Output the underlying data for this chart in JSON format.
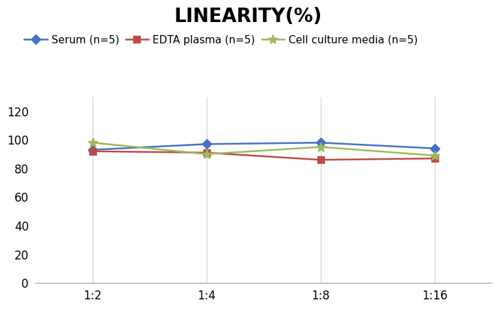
{
  "title": "LINEARITY(%)",
  "title_fontsize": 20,
  "title_fontweight": "bold",
  "x_labels": [
    "1:2",
    "1:4",
    "1:8",
    "1:16"
  ],
  "x_positions": [
    0,
    1,
    2,
    3
  ],
  "series": [
    {
      "label": "Serum (n=5)",
      "values": [
        93,
        97,
        98,
        94
      ],
      "color": "#4472C4",
      "marker": "D",
      "markersize": 7,
      "linewidth": 1.8
    },
    {
      "label": "EDTA plasma (n=5)",
      "values": [
        92,
        91,
        86,
        87
      ],
      "color": "#BE4B48",
      "marker": "s",
      "markersize": 7,
      "linewidth": 1.8
    },
    {
      "label": "Cell culture media (n=5)",
      "values": [
        98,
        90,
        95,
        89
      ],
      "color": "#9BBB59",
      "marker": "*",
      "markersize": 10,
      "linewidth": 1.8
    }
  ],
  "ylim": [
    0,
    130
  ],
  "yticks": [
    0,
    20,
    40,
    60,
    80,
    100,
    120
  ],
  "background_color": "#ffffff",
  "grid_color": "#d0d0d0",
  "legend_fontsize": 11,
  "axis_fontsize": 12
}
